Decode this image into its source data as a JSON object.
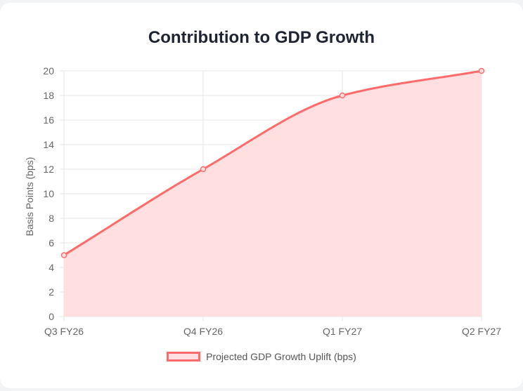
{
  "chart_data": {
    "type": "area",
    "title": "Contribution to GDP Growth",
    "categories": [
      "Q3 FY26",
      "Q4 FY26",
      "Q1 FY27",
      "Q2 FY27"
    ],
    "series": [
      {
        "name": "Projected GDP Growth Uplift (bps)",
        "values": [
          5,
          12,
          18,
          20
        ]
      }
    ],
    "ylabel": "Basis Points (bps)",
    "xlabel": "",
    "ylim": [
      0,
      20
    ],
    "yticks": [
      0,
      2,
      4,
      6,
      8,
      10,
      12,
      14,
      16,
      18,
      20
    ],
    "grid": true,
    "legend_position": "bottom",
    "colors": {
      "line": "#ff6b6b",
      "fill": "#ffdfdf",
      "grid": "#e5e5e5"
    }
  }
}
